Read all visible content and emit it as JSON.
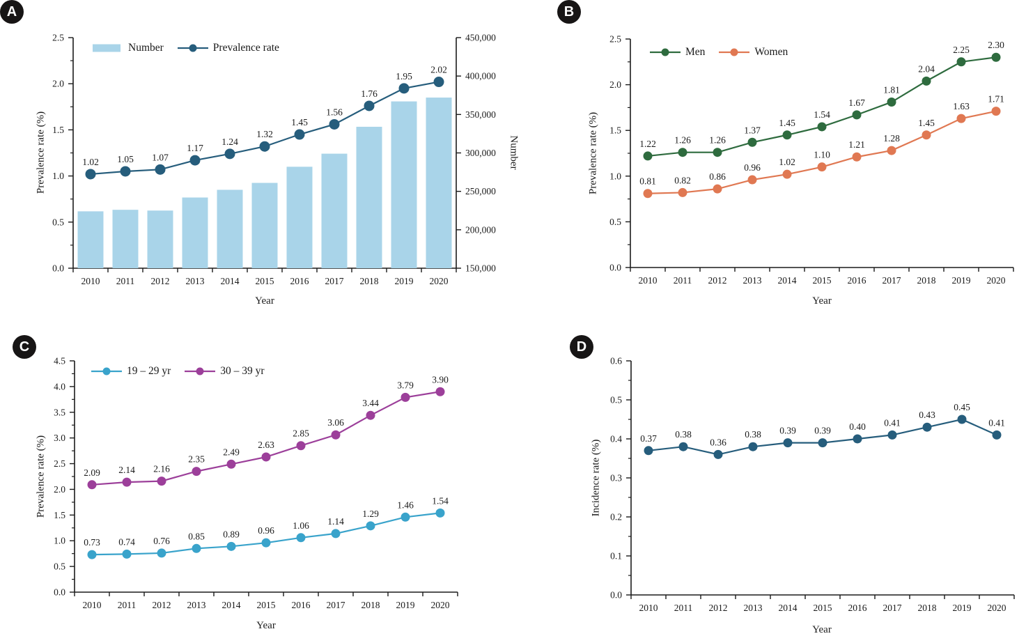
{
  "figure": {
    "description": "Four-panel line/bar figure, prevalence and incidence rates 2010-2020"
  },
  "chart_data": [
    {
      "panel_label": "A",
      "type": "bar",
      "subtype": "bar+line",
      "categories": [
        "2010",
        "2011",
        "2012",
        "2013",
        "2014",
        "2015",
        "2016",
        "2017",
        "2018",
        "2019",
        "2020"
      ],
      "xlabel": "Year",
      "ylabel": "Prevalence rate (%)",
      "y2label": "Number",
      "y_axis": {
        "min": 0,
        "max": 2.5,
        "step": 0.5,
        "decimals": 1
      },
      "y2_axis": {
        "min": 150000,
        "max": 450000,
        "step": 50000,
        "format": "comma"
      },
      "legend_position": "top",
      "grid": false,
      "series": [
        {
          "name": "Number",
          "type": "bar",
          "axis": "y2",
          "color": "#A9D4E9",
          "values": [
            224000,
            226000,
            225000,
            242000,
            252000,
            261000,
            282000,
            299000,
            334000,
            367000,
            372000
          ],
          "data_labels": false
        },
        {
          "name": "Prevalence rate",
          "type": "line",
          "axis": "y",
          "color": "#265D7C",
          "values": [
            1.02,
            1.05,
            1.07,
            1.17,
            1.24,
            1.32,
            1.45,
            1.56,
            1.76,
            1.95,
            2.02
          ],
          "data_labels": true
        }
      ]
    },
    {
      "panel_label": "B",
      "type": "line",
      "categories": [
        "2010",
        "2011",
        "2012",
        "2013",
        "2014",
        "2015",
        "2016",
        "2017",
        "2018",
        "2019",
        "2020"
      ],
      "xlabel": "Year",
      "ylabel": "Prevalence rate (%)",
      "y_axis": {
        "min": 0,
        "max": 2.5,
        "step": 0.5,
        "decimals": 1
      },
      "legend_position": "top",
      "grid": false,
      "series": [
        {
          "name": "Men",
          "type": "line",
          "axis": "y",
          "color": "#2E6B3E",
          "values": [
            1.22,
            1.26,
            1.26,
            1.37,
            1.45,
            1.54,
            1.67,
            1.81,
            2.04,
            2.25,
            2.3
          ],
          "data_labels": true
        },
        {
          "name": "Women",
          "type": "line",
          "axis": "y",
          "color": "#E07852",
          "values": [
            0.81,
            0.82,
            0.86,
            0.96,
            1.02,
            1.1,
            1.21,
            1.28,
            1.45,
            1.63,
            1.71
          ],
          "data_labels": true
        }
      ]
    },
    {
      "panel_label": "C",
      "type": "line",
      "categories": [
        "2010",
        "2011",
        "2012",
        "2013",
        "2014",
        "2015",
        "2016",
        "2017",
        "2018",
        "2019",
        "2020"
      ],
      "xlabel": "Year",
      "ylabel": "Prevalence rate (%)",
      "y_axis": {
        "min": 0,
        "max": 4.5,
        "step": 0.5,
        "decimals": 1
      },
      "legend_position": "top",
      "grid": false,
      "series": [
        {
          "name": "19 – 29 yr",
          "type": "line",
          "axis": "y",
          "color": "#39A3CB",
          "values": [
            0.73,
            0.74,
            0.76,
            0.85,
            0.89,
            0.96,
            1.06,
            1.14,
            1.29,
            1.46,
            1.54
          ],
          "data_labels": true
        },
        {
          "name": "30 – 39 yr",
          "type": "line",
          "axis": "y",
          "color": "#9C3F9A",
          "values": [
            2.09,
            2.14,
            2.16,
            2.35,
            2.49,
            2.63,
            2.85,
            3.06,
            3.44,
            3.79,
            3.9
          ],
          "data_labels": true
        }
      ]
    },
    {
      "panel_label": "D",
      "type": "line",
      "categories": [
        "2010",
        "2011",
        "2012",
        "2013",
        "2014",
        "2015",
        "2016",
        "2017",
        "2018",
        "2019",
        "2020"
      ],
      "xlabel": "Year",
      "ylabel": "Incidence rate (%)",
      "y_axis": {
        "min": 0,
        "max": 0.6,
        "step": 0.1,
        "decimals": 1
      },
      "legend_position": "none",
      "grid": false,
      "series": [
        {
          "name": "Incidence rate",
          "type": "line",
          "axis": "y",
          "color": "#265D7C",
          "values": [
            0.37,
            0.38,
            0.36,
            0.38,
            0.39,
            0.39,
            0.4,
            0.41,
            0.43,
            0.45,
            0.41
          ],
          "data_labels": true
        }
      ]
    }
  ]
}
